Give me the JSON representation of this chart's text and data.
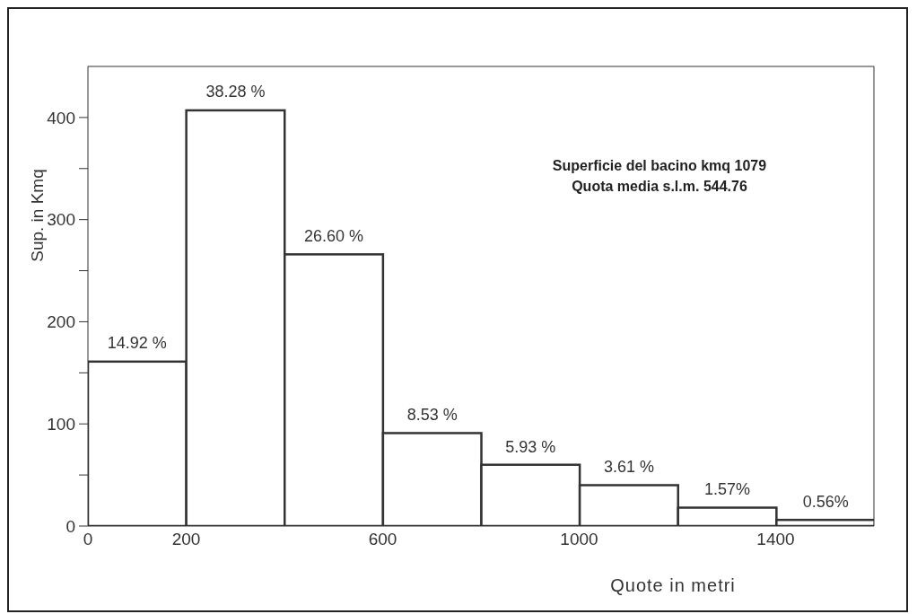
{
  "chart_data": {
    "type": "histogram",
    "bins": [
      0,
      200,
      400,
      600,
      800,
      1000,
      1200,
      1400,
      1600
    ],
    "values": [
      161,
      407,
      266,
      91,
      60,
      40,
      18,
      6
    ],
    "color": "#333333",
    "xlabel": "Quote in metri",
    "ylabel": "Sup. in Kmq",
    "xlim": [
      0,
      1600
    ],
    "xticks": [
      0,
      200,
      600,
      1000,
      1400
    ],
    "ylim": [
      0,
      450
    ],
    "yticks": [
      0,
      {
        "value": 50,
        "label": null
      },
      100,
      {
        "value": 150,
        "label": null
      },
      200,
      {
        "value": 250,
        "label": null
      },
      300,
      {
        "value": 350,
        "label": null
      },
      400
    ],
    "annotations": [
      "Superficie del bacino kmq 1079\nQuota media s.l.m. 544.76",
      {
        "text": "14.92 %",
        "x": 100,
        "y": 161
      },
      {
        "text": "38.28 %",
        "x": 300,
        "y": 407
      },
      {
        "text": "26.60 %",
        "x": 500,
        "y": 266
      },
      {
        "text": "8.53 %",
        "x": 700,
        "y": 91
      },
      {
        "text": "5.93 %",
        "x": 900,
        "y": 60
      },
      {
        "text": "3.61 %",
        "x": 1100,
        "y": 40
      },
      {
        "text": "1.57%",
        "x": 1300,
        "y": 18
      },
      {
        "text": "0.56%",
        "x": 1500,
        "y": 6
      }
    ],
    "grid": false
  }
}
